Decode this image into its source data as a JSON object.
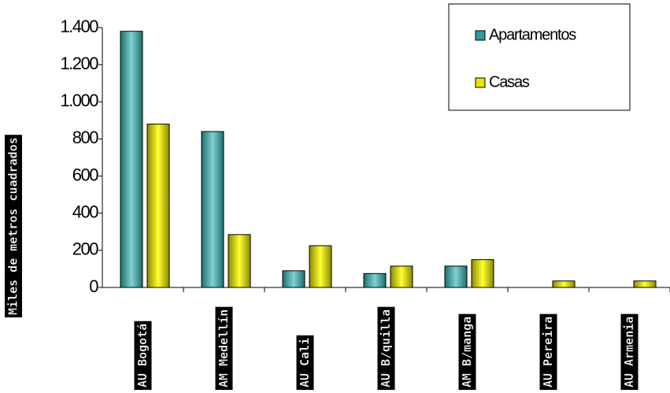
{
  "chart_data": {
    "type": "bar",
    "y_label": "Miles de metros cuadrados",
    "categories": [
      "AU Bogotá",
      "AM Medellín",
      "AU Cali",
      "AU B/quilla",
      "AM B/manga",
      "AU Pereira",
      "AU Armenia"
    ],
    "series": [
      {
        "name": "Apartamentos",
        "color": "#2e9a9a",
        "values": [
          1380,
          840,
          90,
          75,
          115,
          null,
          null
        ]
      },
      {
        "name": "Casas",
        "color": "#e6e600",
        "values": [
          880,
          285,
          225,
          115,
          150,
          35,
          35
        ]
      }
    ],
    "ylim": [
      0,
      1400
    ],
    "yticks": [
      0,
      200,
      400,
      600,
      800,
      {
        "value": 1000,
        "label": "1.000"
      },
      {
        "value": 1200,
        "label": "1.200"
      },
      {
        "value": 1400,
        "label": "1.400"
      }
    ],
    "legend": "top-right"
  }
}
